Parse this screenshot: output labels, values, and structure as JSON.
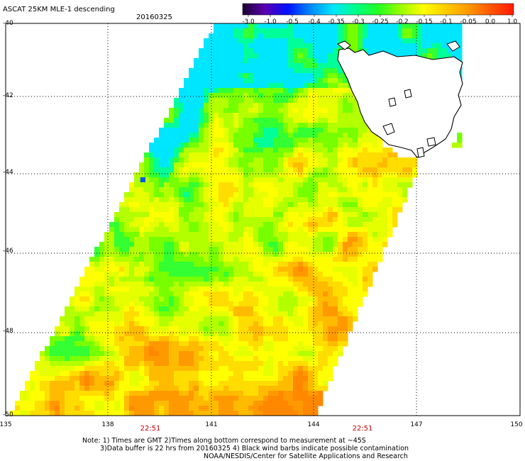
{
  "header": {
    "title": "ASCAT 25KM MLE-1 descending",
    "date": "20160325"
  },
  "colorbar": {
    "labels": [
      "-3.0",
      "-1.0",
      "-0.5",
      "-0.4",
      "-0.35",
      "-0.3",
      "-0.25",
      "-0.2",
      "-0.15",
      "-0.1",
      "-0.05",
      "0.0",
      "1.0"
    ],
    "colors": [
      "#1a0033",
      "#5b00b0",
      "#0010ff",
      "#0088ff",
      "#00e5ff",
      "#00ff88",
      "#22ff22",
      "#99ff00",
      "#ffff00",
      "#ffcc00",
      "#ff9900",
      "#ff5500",
      "#ff1a00"
    ]
  },
  "axes": {
    "y_ticks": [
      "-40",
      "-42",
      "-44",
      "-46",
      "-48",
      "-50"
    ],
    "x_ticks": [
      "135",
      "138",
      "141",
      "144",
      "147",
      "150"
    ]
  },
  "times": [
    "22:51",
    "22:51"
  ],
  "notes": [
    "Note: 1) Times are GMT 2)Times along bottom correspond to measurement at ~45S",
    "3)Data buffer is 22 hrs from 20160325 4) Black wind barbs indicate possible contamination",
    "NOAA/NESDIS/Center for Satellite Applications and Research"
  ]
}
